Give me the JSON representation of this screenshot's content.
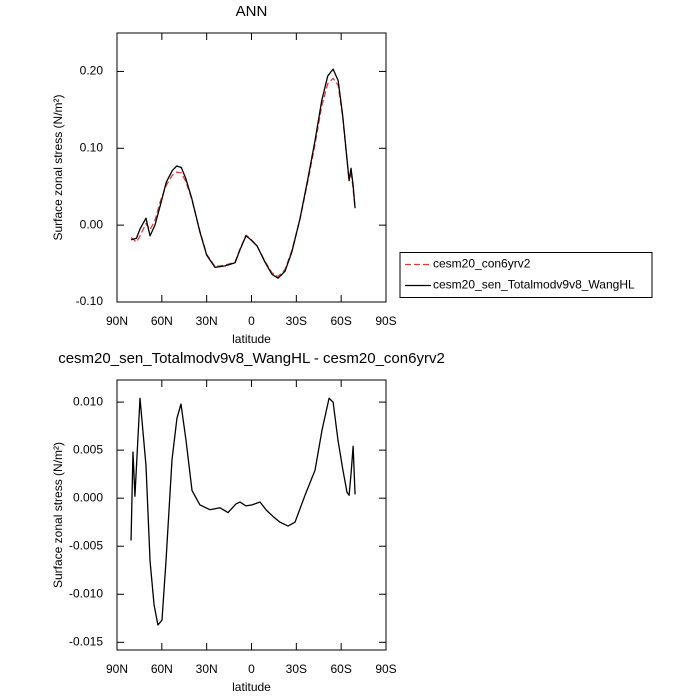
{
  "chart_data": [
    {
      "type": "line",
      "title": "ANN",
      "xlabel": "latitude",
      "ylabel": "Surface zonal stress (N/m²)",
      "x": [
        80.6,
        77,
        74.6,
        70.6,
        67.9,
        64.6,
        61,
        57,
        53,
        50,
        47,
        44,
        40,
        34.5,
        30,
        24.4,
        17.7,
        11,
        7.7,
        3.7,
        1,
        -3.7,
        -9,
        -13.7,
        -17.8,
        -22.4,
        -27,
        -32.5,
        -37.8,
        -42.5,
        -47,
        -51,
        -54.6,
        -58,
        -61,
        -64,
        -65.3,
        -66.6,
        -68,
        -69.3
      ],
      "series": [
        {
          "name": "cesm20_con6yrv2",
          "color": "#e8392f",
          "dash": true,
          "values": [
            -0.016,
            -0.022,
            -0.014,
            0.002,
            -0.006,
            0.006,
            0.031,
            0.052,
            0.065,
            0.069,
            0.068,
            0.057,
            0.034,
            -0.008,
            -0.038,
            -0.054,
            -0.052,
            -0.048,
            -0.031,
            -0.013,
            -0.017,
            -0.027,
            -0.047,
            -0.062,
            -0.067,
            -0.058,
            -0.033,
            0.008,
            0.058,
            0.105,
            0.155,
            0.184,
            0.191,
            0.182,
            0.141,
            0.083,
            0.058,
            0.069,
            0.047,
            0.022
          ]
        },
        {
          "name": "cesm20_sen_Totalmodv9v8_WangHL",
          "color": "#000000",
          "dash": false,
          "values": [
            -0.019,
            -0.017,
            -0.005,
            0.009,
            -0.014,
            0,
            0.026,
            0.056,
            0.071,
            0.077,
            0.075,
            0.061,
            0.035,
            -0.009,
            -0.039,
            -0.055,
            -0.053,
            -0.049,
            -0.032,
            -0.014,
            -0.018,
            -0.027,
            -0.048,
            -0.064,
            -0.069,
            -0.06,
            -0.035,
            0.009,
            0.061,
            0.11,
            0.162,
            0.194,
            0.203,
            0.188,
            0.143,
            0.084,
            0.058,
            0.074,
            0.052,
            0.022
          ]
        }
      ],
      "xlim": [
        90,
        -90
      ],
      "xticks": [
        {
          "value": 90,
          "label": "90N"
        },
        {
          "value": 60,
          "label": "60N"
        },
        {
          "value": 30,
          "label": "30N"
        },
        0,
        {
          "value": -30,
          "label": "30S"
        },
        {
          "value": -60,
          "label": "60S"
        },
        {
          "value": -90,
          "label": "90S"
        }
      ],
      "ylim": [
        -0.1,
        0.25
      ],
      "yticks": [
        {
          "value": -0.1,
          "label": "-0.10"
        },
        {
          "value": 0,
          "label": "0.00"
        },
        {
          "value": 0.1,
          "label": "0.10"
        },
        {
          "value": 0.2,
          "label": "0.20"
        }
      ],
      "legend": "right"
    },
    {
      "type": "line",
      "title": "cesm20_sen_Totalmodv9v8_WangHL - cesm20_con6yrv2",
      "xlabel": "latitude",
      "ylabel": "Surface zonal stress (N/m²)",
      "x": [
        80.6,
        79.3,
        78.0,
        74.6,
        70.6,
        67.9,
        65.2,
        62.6,
        59.9,
        57.2,
        53.2,
        49.9,
        47.2,
        43.8,
        39.8,
        34.5,
        27.8,
        21.1,
        15.7,
        10.4,
        7.7,
        3.7,
        -0.3,
        -5.7,
        -9.7,
        -14.4,
        -19.1,
        -24.4,
        -29.1,
        -35.8,
        -42.5,
        -47.2,
        -51.9,
        -54.6,
        -57.9,
        -61.2,
        -63.9,
        -65.3,
        -66.7,
        -68.0,
        -69.3
      ],
      "color": "#000000",
      "values": [
        -0.0044,
        0.0048,
        0.0002,
        0.0104,
        0.0034,
        -0.0065,
        -0.0111,
        -0.0132,
        -0.0127,
        -0.0065,
        0.004,
        0.0083,
        0.0098,
        0.006,
        0.0008,
        -0.0007,
        -0.0012,
        -0.001,
        -0.0015,
        -0.0006,
        -0.0004,
        -0.0008,
        -0.0007,
        -0.0004,
        -0.0012,
        -0.0019,
        -0.0025,
        -0.0029,
        -0.0025,
        0.0003,
        0.0029,
        0.0071,
        0.0104,
        0.01,
        0.006,
        0.0029,
        0.0006,
        0.0003,
        0.0027,
        0.0054,
        0.0004
      ],
      "xlim": [
        90,
        -90
      ],
      "xticks": [
        {
          "value": 90,
          "label": "90N"
        },
        {
          "value": 60,
          "label": "60N"
        },
        {
          "value": 30,
          "label": "30N"
        },
        0,
        {
          "value": -30,
          "label": "30S"
        },
        {
          "value": -60,
          "label": "60S"
        },
        {
          "value": -90,
          "label": "90S"
        }
      ],
      "ylim": [
        -0.0158,
        0.0123
      ],
      "yticks": [
        {
          "value": -0.015,
          "label": "-0.015"
        },
        {
          "value": -0.01,
          "label": "-0.010"
        },
        {
          "value": -0.005,
          "label": "-0.005"
        },
        {
          "value": 0,
          "label": "0.000"
        },
        {
          "value": 0.005,
          "label": "0.005"
        },
        {
          "value": 0.01,
          "label": "0.010"
        }
      ]
    }
  ]
}
